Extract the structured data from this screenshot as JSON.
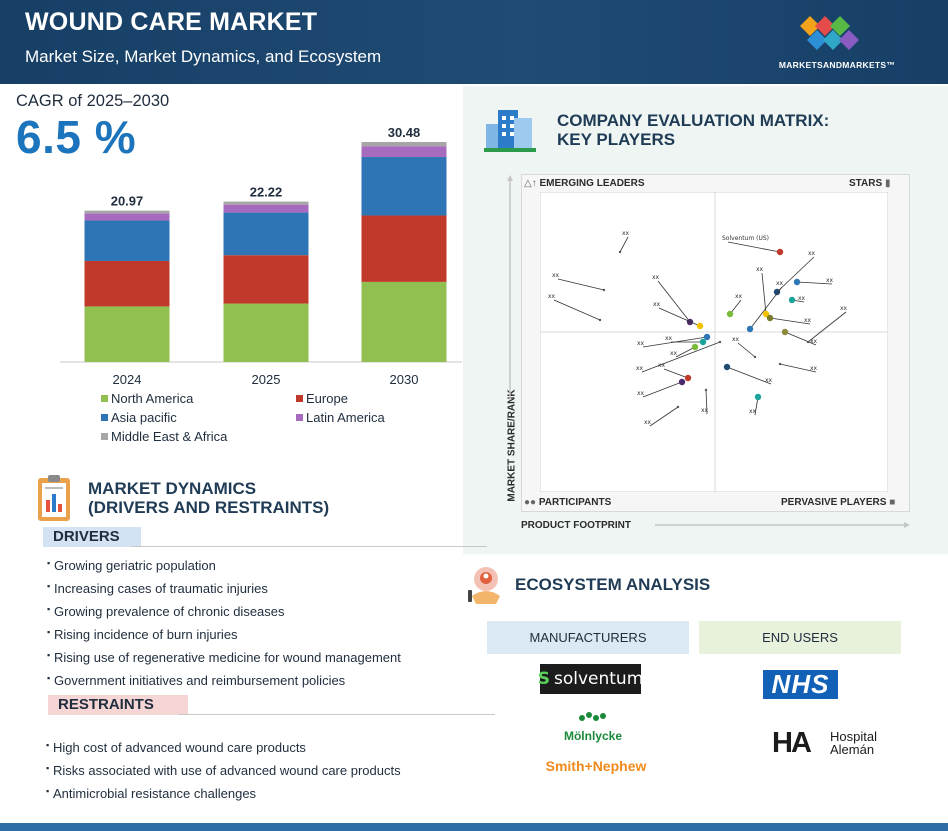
{
  "header": {
    "title": "WOUND CARE MARKET",
    "subtitle": "Market Size, Market Dynamics, and Ecosystem",
    "brand": "MARKETSANDMARKETS™"
  },
  "cagr": {
    "label": "CAGR of 2025–2030",
    "value": "6.5 %"
  },
  "chart_data": {
    "type": "bar",
    "stacked": true,
    "categories": [
      "2024",
      "2025",
      "2030"
    ],
    "totals": [
      20.97,
      22.22,
      30.48
    ],
    "total_labels": [
      "20.97",
      "22.22",
      "30.48"
    ],
    "series": [
      {
        "name": "North America",
        "color": "#92c050",
        "values": [
          7.7,
          8.1,
          11.1
        ]
      },
      {
        "name": "Europe",
        "color": "#c0392b",
        "values": [
          6.3,
          6.7,
          9.2
        ]
      },
      {
        "name": "Asia pacific",
        "color": "#2e75b6",
        "values": [
          5.6,
          5.9,
          8.1
        ]
      },
      {
        "name": "Latin America",
        "color": "#a66bbe",
        "values": [
          1.0,
          1.1,
          1.5
        ]
      },
      {
        "name": "Middle East & Africa",
        "color": "#a6a6a6",
        "values": [
          0.37,
          0.42,
          0.58
        ]
      }
    ],
    "ylim": [
      0,
      30.48
    ],
    "xlabel": "",
    "ylabel": "",
    "title": "",
    "legend_position": "bottom"
  },
  "matrix": {
    "title_line1": "COMPANY EVALUATION MATRIX:",
    "title_line2": "KEY PLAYERS",
    "corners": {
      "top_left": "EMERGING LEADERS",
      "top_right": "STARS",
      "bottom_left": "PARTICIPANTS",
      "bottom_right": "PERVASIVE PLAYERS"
    },
    "y_axis": "MARKET SHARE/RANK",
    "x_axis": "PRODUCT FOOTPRINT",
    "players": [
      {
        "label": "xx"
      },
      {
        "label": "xx"
      },
      {
        "label": "xx"
      },
      {
        "label": "xx"
      },
      {
        "label": "xx"
      },
      {
        "label": "xx"
      },
      {
        "label": "xx"
      },
      {
        "label": "xx"
      },
      {
        "label": "Solventum (US)"
      },
      {
        "label": "xx"
      },
      {
        "label": "xx"
      },
      {
        "label": "xx"
      },
      {
        "label": "xx"
      },
      {
        "label": "xx"
      },
      {
        "label": "xx"
      },
      {
        "label": "xx"
      },
      {
        "label": "xx"
      },
      {
        "label": "xx"
      },
      {
        "label": "xx"
      },
      {
        "label": "xx"
      },
      {
        "label": "xx"
      },
      {
        "label": "xx"
      },
      {
        "label": "xx"
      },
      {
        "label": "xx"
      },
      {
        "label": "xx"
      },
      {
        "label": "xx"
      },
      {
        "label": "xx"
      }
    ]
  },
  "dynamics": {
    "title_line1": "MARKET DYNAMICS",
    "title_line2": "(DRIVERS AND RESTRAINTS)",
    "drivers_label": "DRIVERS",
    "drivers": [
      "Growing geriatric population",
      "Increasing cases of traumatic injuries",
      "Growing prevalence of chronic diseases",
      "Rising incidence of burn injuries",
      "Rising use of regenerative medicine for wound management",
      "Government initiatives and reimbursement policies"
    ],
    "restraints_label": "RESTRAINTS",
    "restraints": [
      "High cost of advanced wound care products",
      "Risks associated with use of advanced wound care products",
      "Antimicrobial resistance challenges"
    ]
  },
  "ecosystem": {
    "title": "ECOSYSTEM ANALYSIS",
    "manufacturers_label": "MANUFACTURERS",
    "end_users_label": "END USERS",
    "manufacturers": [
      "solventum",
      "Mölnlycke",
      "Smith+Nephew"
    ],
    "end_users": [
      "NHS",
      "Hospital",
      "Alemán"
    ]
  }
}
